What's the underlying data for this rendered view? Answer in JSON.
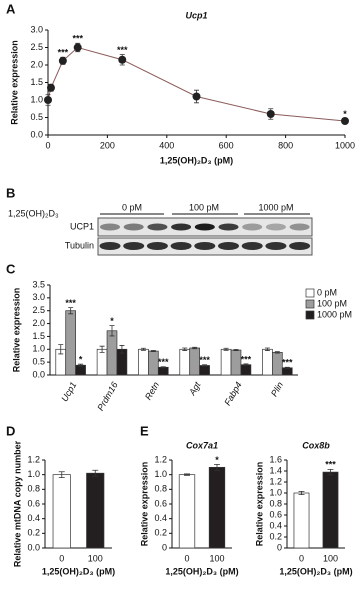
{
  "chart_data": [
    {
      "panel": "A",
      "type": "line",
      "title": "Ucp1",
      "xlabel": "1,25(OH)₂D₃ (pM)",
      "ylabel": "Relative expression",
      "x": [
        0,
        10,
        50,
        100,
        250,
        500,
        750,
        1000
      ],
      "values": [
        1.0,
        1.35,
        2.12,
        2.5,
        2.15,
        1.1,
        0.6,
        0.4
      ],
      "errors": [
        0.15,
        0.1,
        0.1,
        0.12,
        0.15,
        0.18,
        0.15,
        0.07
      ],
      "significance": [
        null,
        null,
        "***",
        "***",
        "***",
        null,
        null,
        "*"
      ],
      "color": "#222222",
      "xlim": [
        0,
        1000
      ],
      "xticks": [
        0,
        200,
        400,
        600,
        800,
        1000
      ],
      "ylim": [
        0,
        3
      ],
      "yticks": [
        {
          "value": 0,
          "label": "0.0"
        },
        0.5,
        {
          "value": 1,
          "label": "1.0"
        },
        1.5,
        {
          "value": 2,
          "label": "2.0"
        },
        2.5,
        {
          "value": 3,
          "label": "3.0"
        }
      ]
    },
    {
      "panel": "C",
      "type": "bar",
      "ylabel": "Relative expression",
      "categories": [
        "Ucp1",
        "Prdm16",
        "Retn",
        "Agt",
        "Fabp4",
        "Plin"
      ],
      "series": [
        {
          "name": "0 pM",
          "color": "#ffffff",
          "values": [
            1.0,
            1.0,
            1.0,
            1.0,
            1.0,
            1.0
          ],
          "errors": [
            0.18,
            0.12,
            0.04,
            0.05,
            0.04,
            0.05
          ]
        },
        {
          "name": "100 pM",
          "color": "#9d9d9d",
          "values": [
            2.5,
            1.72,
            0.93,
            1.05,
            0.97,
            0.88
          ],
          "errors": [
            0.12,
            0.2,
            0.02,
            0.03,
            0.02,
            0.03
          ],
          "significance": [
            "***",
            "*",
            null,
            null,
            null,
            null
          ]
        },
        {
          "name": "1000 pM",
          "color": "#231f20",
          "values": [
            0.38,
            1.0,
            0.3,
            0.37,
            0.4,
            0.28
          ],
          "errors": [
            0.04,
            0.15,
            0.02,
            0.03,
            0.03,
            0.02
          ],
          "significance": [
            "*",
            null,
            "***",
            "***",
            "***",
            "***"
          ]
        }
      ],
      "ylim": [
        0,
        3.5
      ],
      "yticks": [
        {
          "value": 0,
          "label": "0.0"
        },
        0.5,
        {
          "value": 1,
          "label": "1.0"
        },
        1.5,
        {
          "value": 2,
          "label": "2.0"
        },
        2.5,
        {
          "value": 3,
          "label": "3.0"
        },
        3.5
      ]
    },
    {
      "panel": "D",
      "type": "bar",
      "ylabel": "Relative mtDNA copy number",
      "xlabel": "1,25(OH)₂D₃ (pM)",
      "categories": [
        "0",
        "100"
      ],
      "values": [
        1.0,
        1.02
      ],
      "errors": [
        0.04,
        0.04
      ],
      "colors": [
        "#ffffff",
        "#231f20"
      ],
      "ylim": [
        0,
        1.2
      ],
      "yticks": [
        {
          "value": 0,
          "label": "0.0"
        },
        0.2,
        0.4,
        0.6,
        0.8,
        {
          "value": 1,
          "label": "1.0"
        },
        1.2
      ]
    },
    {
      "panel": "E",
      "type": "bar",
      "title": "Cox7a1",
      "ylabel": "Relative expression",
      "xlabel": "1,25(OH)₂D₃ (pM)",
      "categories": [
        "0",
        "100"
      ],
      "values": [
        1.0,
        1.1
      ],
      "errors": [
        0.01,
        0.04
      ],
      "significance": [
        null,
        "*"
      ],
      "colors": [
        "#ffffff",
        "#231f20"
      ],
      "ylim": [
        0,
        1.2
      ],
      "yticks": [
        0,
        0.2,
        0.4,
        0.6,
        0.8,
        {
          "value": 1,
          "label": "1.0"
        },
        1.2
      ]
    },
    {
      "type": "bar",
      "title": "Cox8b",
      "ylabel": "Relative expression",
      "xlabel": "1,25(OH)₂D₃ (pM)",
      "categories": [
        "0",
        "100"
      ],
      "values": [
        1.0,
        1.38
      ],
      "errors": [
        0.03,
        0.05
      ],
      "significance": [
        null,
        "***"
      ],
      "colors": [
        "#ffffff",
        "#231f20"
      ],
      "ylim": [
        0,
        1.6
      ],
      "yticks": [
        0,
        0.2,
        0.4,
        0.6,
        0.8,
        {
          "value": 1,
          "label": "1.0"
        },
        1.2,
        1.4,
        1.6
      ]
    }
  ],
  "panel_b": {
    "panel": "B",
    "treatment_label": "1,25(OH)₂D₃",
    "groups": [
      "0 pM",
      "100 pM",
      "1000 pM"
    ],
    "rows": [
      "UCP1",
      "Tubulin"
    ]
  }
}
